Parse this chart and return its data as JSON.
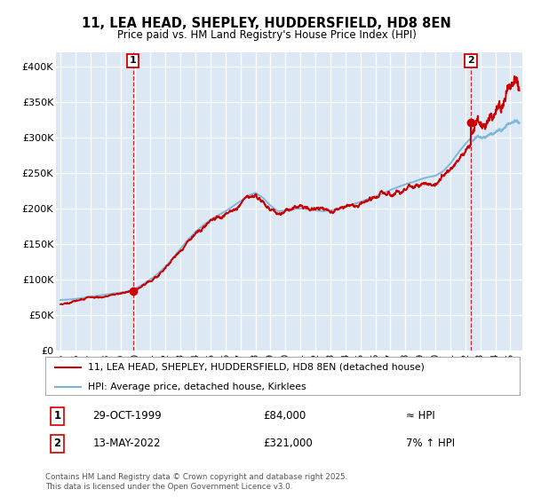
{
  "title": "11, LEA HEAD, SHEPLEY, HUDDERSFIELD, HD8 8EN",
  "subtitle": "Price paid vs. HM Land Registry's House Price Index (HPI)",
  "bg_color": "#dce9f5",
  "fig_bg_color": "#ffffff",
  "hpi_color": "#7ab4d8",
  "price_color": "#cc0000",
  "marker1_date": 1999.83,
  "marker1_value": 84000,
  "marker2_date": 2022.37,
  "marker2_value": 321000,
  "legend_entries": [
    "11, LEA HEAD, SHEPLEY, HUDDERSFIELD, HD8 8EN (detached house)",
    "HPI: Average price, detached house, Kirklees"
  ],
  "annotation1_label": "1",
  "annotation1_date": "29-OCT-1999",
  "annotation1_price": "£84,000",
  "annotation1_hpi": "≈ HPI",
  "annotation2_label": "2",
  "annotation2_date": "13-MAY-2022",
  "annotation2_price": "£321,000",
  "annotation2_hpi": "7% ↑ HPI",
  "footer": "Contains HM Land Registry data © Crown copyright and database right 2025.\nThis data is licensed under the Open Government Licence v3.0.",
  "ylim": [
    0,
    420000
  ],
  "yticks": [
    0,
    50000,
    100000,
    150000,
    200000,
    250000,
    300000,
    350000,
    400000
  ],
  "ytick_labels": [
    "£0",
    "£50K",
    "£100K",
    "£150K",
    "£200K",
    "£250K",
    "£300K",
    "£350K",
    "£400K"
  ],
  "xlim_start": 1994.7,
  "xlim_end": 2025.8,
  "xticks": [
    1995,
    1996,
    1997,
    1998,
    1999,
    2000,
    2001,
    2002,
    2003,
    2004,
    2005,
    2006,
    2007,
    2008,
    2009,
    2010,
    2011,
    2012,
    2013,
    2014,
    2015,
    2016,
    2017,
    2018,
    2019,
    2020,
    2021,
    2022,
    2023,
    2024,
    2025
  ],
  "hpi_anchor_years": [
    1995.0,
    1995.5,
    1996.0,
    1996.5,
    1997.0,
    1997.5,
    1998.0,
    1998.5,
    1999.0,
    1999.5,
    2000.0,
    2000.5,
    2001.0,
    2001.5,
    2002.0,
    2002.5,
    2003.0,
    2003.5,
    2004.0,
    2004.5,
    2005.0,
    2005.5,
    2006.0,
    2006.5,
    2007.0,
    2007.5,
    2008.0,
    2008.5,
    2009.0,
    2009.5,
    2010.0,
    2010.5,
    2011.0,
    2011.5,
    2012.0,
    2012.5,
    2013.0,
    2013.5,
    2014.0,
    2014.5,
    2015.0,
    2015.5,
    2016.0,
    2016.5,
    2017.0,
    2017.5,
    2018.0,
    2018.5,
    2019.0,
    2019.5,
    2020.0,
    2020.5,
    2021.0,
    2021.5,
    2022.0,
    2022.37,
    2022.5,
    2023.0,
    2023.5,
    2024.0,
    2024.5,
    2025.0,
    2025.5
  ],
  "hpi_anchor_vals": [
    71000,
    71500,
    72500,
    74000,
    75500,
    77000,
    78500,
    80000,
    81500,
    83000,
    87000,
    93000,
    100000,
    108000,
    118000,
    130000,
    143000,
    156000,
    167000,
    176000,
    184000,
    190000,
    196000,
    203000,
    210000,
    218000,
    222000,
    215000,
    204000,
    196000,
    197000,
    199000,
    200000,
    199000,
    197000,
    196000,
    197000,
    199000,
    202000,
    206000,
    209000,
    213000,
    217000,
    221000,
    226000,
    230000,
    234000,
    237000,
    241000,
    244000,
    246000,
    252000,
    263000,
    278000,
    291000,
    299000,
    302000,
    308000,
    310000,
    311000,
    313000,
    315000,
    318000
  ]
}
